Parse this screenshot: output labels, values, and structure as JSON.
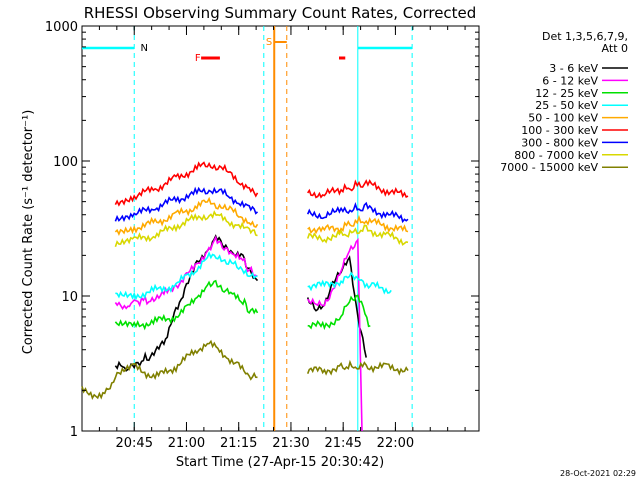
{
  "chart_data": {
    "type": "line",
    "title": "RHESSI Observing Summary Count Rates, Corrected",
    "ylabel": "Corrected Count Rate (s⁻¹ detector⁻¹)",
    "xlabel": "Start Time (27-Apr-15 20:30:42)",
    "ylog": true,
    "ylim": [
      1,
      1000
    ],
    "xlim_minutes": [
      20.5,
      22.4
    ],
    "x_ticks": [
      {
        "label": "20:45",
        "hour": 20.75
      },
      {
        "label": "21:00",
        "hour": 21.0
      },
      {
        "label": "21:15",
        "hour": 21.25
      },
      {
        "label": "21:30",
        "hour": 21.5
      },
      {
        "label": "21:45",
        "hour": 21.75
      },
      {
        "label": "22:00",
        "hour": 22.0
      }
    ],
    "y_ticks": [
      {
        "label": "1",
        "value": 1
      },
      {
        "label": "10",
        "value": 10
      },
      {
        "label": "100",
        "value": 100
      },
      {
        "label": "1000",
        "value": 1000
      }
    ],
    "legend_header": [
      "Det 1,3,5,6,7,9,",
      "Att 0"
    ],
    "legend_placement": "right",
    "series": [
      {
        "name": "3 - 6 keV",
        "color": "#000000",
        "hours": [
          20.66,
          20.72,
          20.75,
          20.82,
          20.9,
          20.95,
          21.0,
          21.05,
          21.1,
          21.14,
          21.18,
          21.22,
          21.27,
          21.3,
          21.32,
          21.34,
          21.58,
          21.62,
          21.66,
          21.7,
          21.74,
          21.78,
          21.82,
          21.86
        ],
        "values": [
          3,
          3,
          3,
          3.6,
          4.5,
          8,
          12,
          17,
          22,
          27,
          23,
          21,
          19,
          16,
          14,
          13,
          9,
          8,
          9,
          12,
          15,
          20,
          7,
          3.5
        ]
      },
      {
        "name": "6 - 12 keV",
        "color": "#ff00ff",
        "hours": [
          20.66,
          20.72,
          20.75,
          20.82,
          20.9,
          20.95,
          21.0,
          21.05,
          21.1,
          21.14,
          21.18,
          21.22,
          21.27,
          21.3,
          21.32,
          21.34,
          21.58,
          21.62,
          21.66,
          21.7,
          21.74,
          21.78,
          21.82,
          21.84
        ],
        "values": [
          8.5,
          8.5,
          9,
          9.5,
          10.5,
          12,
          14,
          17,
          22,
          27,
          22,
          20,
          18,
          16,
          15,
          14,
          9,
          8.5,
          9,
          11,
          15,
          22,
          26,
          1
        ]
      },
      {
        "name": "12 - 25 keV",
        "color": "#00e000",
        "hours": [
          20.66,
          20.75,
          20.85,
          20.95,
          21.0,
          21.05,
          21.1,
          21.14,
          21.18,
          21.22,
          21.27,
          21.3,
          21.34,
          21.58,
          21.66,
          21.74,
          21.78,
          21.82,
          21.88
        ],
        "values": [
          6,
          6,
          6.5,
          7,
          8,
          10,
          12,
          13,
          11,
          10,
          9,
          8,
          7.5,
          6,
          6,
          7,
          9,
          10,
          6
        ]
      },
      {
        "name": "25 - 50 keV",
        "color": "#00ffff",
        "hours": [
          20.66,
          20.75,
          20.85,
          20.95,
          21.0,
          21.05,
          21.1,
          21.15,
          21.2,
          21.25,
          21.3,
          21.34,
          21.58,
          21.66,
          21.74,
          21.78,
          21.82,
          21.88,
          21.98
        ],
        "values": [
          10,
          10,
          11,
          12,
          14,
          16,
          19,
          20,
          18,
          16,
          15,
          14,
          12,
          12,
          13,
          14,
          13,
          12,
          11
        ]
      },
      {
        "name": "50 - 100 keV",
        "color": "#ffaa00",
        "hours": [
          20.66,
          20.75,
          20.85,
          20.95,
          21.05,
          21.1,
          21.15,
          21.2,
          21.25,
          21.3,
          21.34,
          21.58,
          21.66,
          21.74,
          21.8,
          21.86,
          21.96,
          22.06
        ],
        "values": [
          30,
          32,
          35,
          40,
          46,
          50,
          48,
          44,
          40,
          36,
          34,
          32,
          31,
          32,
          35,
          36,
          33,
          30
        ]
      },
      {
        "name": "100 - 300 keV",
        "color": "#ff0000",
        "hours": [
          20.66,
          20.75,
          20.85,
          20.95,
          21.05,
          21.1,
          21.15,
          21.2,
          21.25,
          21.3,
          21.34,
          21.58,
          21.66,
          21.74,
          21.8,
          21.86,
          21.96,
          22.06
        ],
        "values": [
          50,
          55,
          62,
          75,
          88,
          95,
          92,
          82,
          72,
          62,
          58,
          58,
          57,
          60,
          65,
          68,
          60,
          55
        ]
      },
      {
        "name": "300 - 800 keV",
        "color": "#0000ff",
        "hours": [
          20.66,
          20.75,
          20.85,
          20.95,
          21.05,
          21.1,
          21.15,
          21.2,
          21.25,
          21.3,
          21.34,
          21.58,
          21.66,
          21.74,
          21.8,
          21.86,
          21.96,
          22.06
        ],
        "values": [
          38,
          40,
          45,
          52,
          58,
          62,
          60,
          55,
          50,
          44,
          42,
          40,
          40,
          42,
          44,
          45,
          40,
          37
        ]
      },
      {
        "name": "800 - 7000 keV",
        "color": "#d8d800",
        "hours": [
          20.66,
          20.75,
          20.85,
          20.95,
          21.05,
          21.1,
          21.15,
          21.2,
          21.25,
          21.3,
          21.34,
          21.58,
          21.66,
          21.74,
          21.8,
          21.86,
          21.96,
          22.06
        ],
        "values": [
          24,
          26,
          28,
          33,
          38,
          40,
          39,
          36,
          33,
          30,
          28,
          27,
          27,
          28,
          30,
          31,
          28,
          25
        ]
      },
      {
        "name": "7000 - 15000 keV",
        "color": "#808000",
        "hours": [
          20.5,
          20.6,
          20.66,
          20.75,
          20.85,
          20.95,
          21.05,
          21.1,
          21.15,
          21.2,
          21.25,
          21.3,
          21.34,
          21.58,
          21.66,
          21.74,
          21.8,
          21.86,
          21.96,
          22.06
        ],
        "values": [
          2,
          1.8,
          2.5,
          3,
          2.5,
          3,
          4,
          4.5,
          4,
          3.5,
          3,
          2.5,
          2.5,
          2.8,
          2.8,
          3,
          3,
          3,
          3,
          2.8
        ]
      }
    ],
    "annotations": [
      {
        "label": "N",
        "color": "#00ffff"
      },
      {
        "label": "F",
        "color": "#ff0000"
      },
      {
        "label": "S",
        "color": "#ff8c00"
      }
    ],
    "footer_date": "28-Oct-2021 02:29"
  }
}
